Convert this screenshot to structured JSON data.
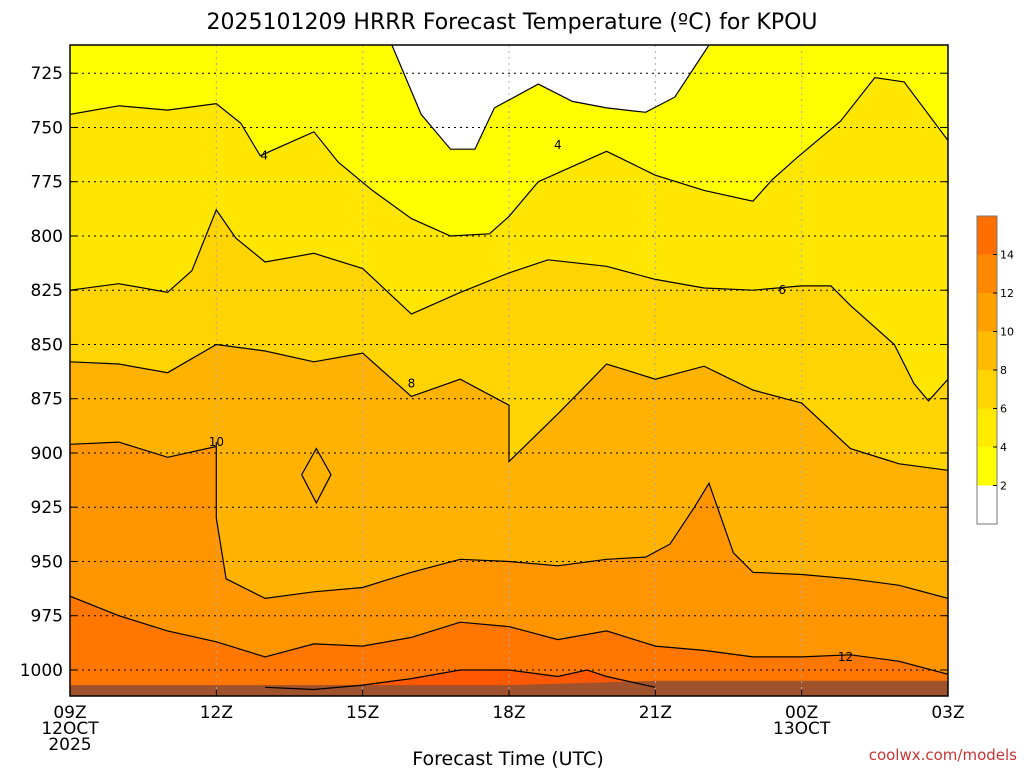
{
  "chart_data": {
    "type": "heatmap",
    "title": "2025101209 HRRR Forecast Temperature (ºC) for KPOU",
    "xlabel": "Forecast Time (UTC)",
    "ylabel": "",
    "credit": "coolwx.com/models",
    "y_axis": {
      "scale": "reversed pressure (hPa)",
      "range": [
        1012,
        712
      ],
      "ticks": [
        725,
        750,
        775,
        800,
        825,
        850,
        875,
        900,
        925,
        950,
        975,
        1000
      ]
    },
    "x_axis": {
      "range_hours": [
        0,
        18
      ],
      "ticks": [
        {
          "h": 0,
          "lines": [
            "09Z",
            "12OCT",
            "2025"
          ]
        },
        {
          "h": 3,
          "lines": [
            "12Z"
          ]
        },
        {
          "h": 6,
          "lines": [
            "15Z"
          ]
        },
        {
          "h": 9,
          "lines": [
            "18Z"
          ]
        },
        {
          "h": 12,
          "lines": [
            "21Z"
          ]
        },
        {
          "h": 15,
          "lines": [
            "00Z",
            "13OCT"
          ]
        },
        {
          "h": 18,
          "lines": [
            "03Z"
          ]
        }
      ]
    },
    "grid": true,
    "colorbar": {
      "placement": "right",
      "levels": [
        0,
        2,
        4,
        6,
        8,
        10,
        12,
        14,
        16
      ],
      "labels": [
        "2",
        "4",
        "6",
        "8",
        "10",
        "12",
        "14"
      ],
      "colors": [
        "#ffffff",
        "#ffff00",
        "#ffea00",
        "#ffd400",
        "#ffbb00",
        "#ffa000",
        "#ff8800",
        "#ff6e00",
        "#ff5500"
      ]
    },
    "fill_colors": {
      "t0_2": "#ffffff",
      "t2_4": "#ffff00",
      "t4_6": "#ffe600",
      "t6_8": "#ffd400",
      "t8_10": "#ffb300",
      "t10_12": "#ff9600",
      "t12_14": "#ff7700",
      "t14_16": "#ff5800",
      "ground": "#a0522d"
    },
    "contours": [
      {
        "level": 2,
        "points": [
          [
            6.6,
            712
          ],
          [
            7.2,
            744
          ],
          [
            7.8,
            760
          ],
          [
            8.3,
            760
          ],
          [
            8.7,
            741
          ],
          [
            9.6,
            730
          ],
          [
            10.3,
            738
          ],
          [
            11,
            741
          ],
          [
            11.8,
            743
          ],
          [
            12.4,
            736
          ],
          [
            13.1,
            712
          ]
        ]
      },
      {
        "level": 4,
        "points": [
          [
            0,
            744
          ],
          [
            1,
            740
          ],
          [
            2,
            742
          ],
          [
            3,
            739
          ],
          [
            3.5,
            748
          ],
          [
            3.9,
            763
          ],
          [
            5,
            752
          ],
          [
            5.5,
            766
          ],
          [
            6.2,
            779
          ],
          [
            7,
            792
          ],
          [
            7.8,
            800
          ],
          [
            8.6,
            799
          ],
          [
            9,
            791
          ],
          [
            9.6,
            775
          ],
          [
            10.4,
            767
          ],
          [
            11,
            761
          ],
          [
            12,
            772
          ],
          [
            13,
            779
          ],
          [
            14,
            784
          ],
          [
            14.4,
            774
          ],
          [
            14.9,
            764
          ],
          [
            15.8,
            747
          ],
          [
            16.5,
            727
          ],
          [
            17.1,
            729
          ],
          [
            18,
            756
          ]
        ]
      },
      {
        "level": 6,
        "points": [
          [
            0,
            825
          ],
          [
            1,
            822
          ],
          [
            2,
            826
          ],
          [
            2.5,
            816
          ],
          [
            3,
            788
          ],
          [
            3.4,
            801
          ],
          [
            4,
            812
          ],
          [
            5,
            808
          ],
          [
            6,
            815
          ],
          [
            7,
            836
          ],
          [
            8,
            826
          ],
          [
            9,
            817
          ],
          [
            9.8,
            811
          ],
          [
            11,
            814
          ],
          [
            12,
            820
          ],
          [
            13,
            824
          ],
          [
            14,
            825
          ],
          [
            15,
            823
          ],
          [
            15.6,
            823
          ],
          [
            16,
            832
          ],
          [
            16.9,
            850
          ],
          [
            17.3,
            868
          ],
          [
            17.6,
            876
          ],
          [
            18,
            866
          ],
          [
            18,
            855
          ]
        ]
      },
      {
        "level": 8,
        "points": [
          [
            0,
            858
          ],
          [
            1,
            859
          ],
          [
            2,
            863
          ],
          [
            3,
            850
          ],
          [
            4,
            853
          ],
          [
            5,
            858
          ],
          [
            6,
            854
          ],
          [
            7,
            874
          ],
          [
            8,
            866
          ],
          [
            9,
            878
          ],
          [
            9,
            904
          ],
          [
            10,
            882
          ],
          [
            10.7,
            866
          ],
          [
            11,
            859
          ],
          [
            12,
            866
          ],
          [
            13,
            860
          ],
          [
            14,
            871
          ],
          [
            15,
            877
          ],
          [
            16,
            898
          ],
          [
            17,
            905
          ],
          [
            18,
            908
          ]
        ]
      },
      {
        "level": 10,
        "points": [
          [
            0,
            896
          ],
          [
            1,
            895
          ],
          [
            2,
            902
          ],
          [
            3,
            897
          ],
          [
            3,
            895
          ],
          [
            3,
            930
          ],
          [
            3.2,
            958
          ],
          [
            4,
            967
          ],
          [
            5,
            964
          ],
          [
            6,
            962
          ],
          [
            7,
            955
          ],
          [
            8,
            949
          ],
          [
            9,
            950
          ],
          [
            10,
            952
          ],
          [
            11,
            949
          ],
          [
            11.8,
            948
          ],
          [
            12.3,
            942
          ],
          [
            12.8,
            925
          ],
          [
            13.1,
            914
          ],
          [
            13.6,
            946
          ],
          [
            14,
            955
          ],
          [
            15,
            956
          ],
          [
            16,
            958
          ],
          [
            17,
            961
          ],
          [
            18,
            967
          ]
        ]
      },
      {
        "level": 10,
        "closed": true,
        "points": [
          [
            5.05,
            898
          ],
          [
            5.35,
            910
          ],
          [
            5.05,
            923
          ],
          [
            4.75,
            910
          ],
          [
            5.05,
            898
          ]
        ]
      },
      {
        "level": 12,
        "points": [
          [
            0,
            966
          ],
          [
            1,
            975
          ],
          [
            2,
            982
          ],
          [
            3,
            987
          ],
          [
            4,
            994
          ],
          [
            5,
            988
          ],
          [
            6,
            989
          ],
          [
            7,
            985
          ],
          [
            8,
            978
          ],
          [
            9,
            980
          ],
          [
            10,
            986
          ],
          [
            11,
            982
          ],
          [
            12,
            989
          ],
          [
            13,
            991
          ],
          [
            14,
            994
          ],
          [
            15,
            994
          ],
          [
            16,
            993
          ],
          [
            17,
            996
          ],
          [
            18,
            1002
          ]
        ]
      },
      {
        "level": 14,
        "points": [
          [
            4,
            1008
          ],
          [
            5,
            1009
          ],
          [
            6,
            1007
          ],
          [
            7,
            1004
          ],
          [
            8,
            1000
          ],
          [
            9,
            1000
          ],
          [
            10,
            1003
          ],
          [
            10.6,
            1000
          ],
          [
            11,
            1003
          ],
          [
            12,
            1008
          ]
        ]
      }
    ],
    "contour_labels": [
      {
        "text": "4",
        "x": 3.98,
        "y": 763
      },
      {
        "text": "4",
        "x": 10.0,
        "y": 758
      },
      {
        "text": "6",
        "x": 14.6,
        "y": 825
      },
      {
        "text": "8",
        "x": 7.0,
        "y": 868
      },
      {
        "text": "10",
        "x": 3.0,
        "y": 895
      },
      {
        "text": "12",
        "x": 15.9,
        "y": 994
      }
    ],
    "ground": {
      "points": [
        [
          0,
          1007
        ],
        [
          3.5,
          1007
        ],
        [
          6,
          1007
        ],
        [
          9,
          1007
        ],
        [
          12,
          1005
        ],
        [
          18,
          1005
        ]
      ]
    }
  }
}
